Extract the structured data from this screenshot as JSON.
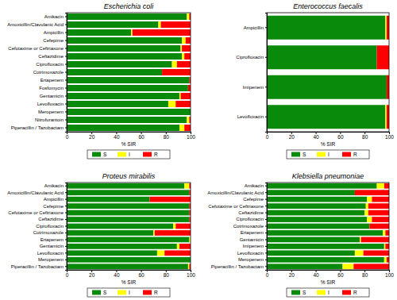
{
  "chart_data": [
    {
      "type": "bar",
      "title": "Escherichia coli",
      "orientation": "horizontal",
      "stacked": true,
      "legend": "bottom",
      "grid": false,
      "xlabel": "% SIR",
      "xlim": [
        0,
        100
      ],
      "xticks": [
        0,
        20,
        40,
        60,
        80,
        100
      ],
      "categories": [
        "Amikacin",
        "Amoxicillin/Clavulanic Acid",
        "Ampicillin",
        "Cefepime",
        "Cefotaxime or Ceftriaxone",
        "Ceftazidime",
        "Ciprofloxacin",
        "Cotrimoxazole",
        "Ertapenem",
        "Fosfomycin",
        "Gentamicin",
        "Levofloxacin",
        "Meropenem",
        "Nitrofurantoin",
        "Piperacillin / Tazobactam"
      ],
      "series": [
        {
          "name": "S",
          "color": "#0a8a0a",
          "values": [
            97,
            74,
            52,
            93,
            92,
            93,
            85,
            77,
            99,
            98,
            91,
            82,
            100,
            97,
            91
          ]
        },
        {
          "name": "I",
          "color": "#ffff00",
          "values": [
            2,
            2,
            1,
            3,
            1,
            2,
            4,
            0,
            0,
            0,
            1,
            6,
            0,
            2,
            4
          ]
        },
        {
          "name": "R",
          "color": "#ff0000",
          "values": [
            1,
            24,
            47,
            4,
            7,
            5,
            11,
            23,
            1,
            2,
            8,
            12,
            0,
            1,
            5
          ]
        }
      ]
    },
    {
      "type": "bar",
      "title": "Enterococcus faecalis",
      "orientation": "horizontal",
      "stacked": true,
      "legend": "bottom",
      "grid": false,
      "xlabel": "% SIR",
      "xlim": [
        0,
        100
      ],
      "xticks": [
        0,
        20,
        40,
        60,
        80,
        100
      ],
      "categories": [
        "Ampicillin",
        "Ciprofloxacin",
        "Imipenem",
        "Levofloxacin"
      ],
      "series": [
        {
          "name": "S",
          "color": "#0a8a0a",
          "values": [
            97,
            90,
            98,
            97
          ]
        },
        {
          "name": "I",
          "color": "#ffff00",
          "values": [
            1,
            0,
            0,
            1
          ]
        },
        {
          "name": "R",
          "color": "#ff0000",
          "values": [
            2,
            10,
            2,
            2
          ]
        }
      ]
    },
    {
      "type": "bar",
      "title": "Proteus mirabilis",
      "orientation": "horizontal",
      "stacked": true,
      "legend": "bottom",
      "grid": false,
      "xlabel": "% SIR",
      "xlim": [
        0,
        100
      ],
      "xticks": [
        0,
        20,
        40,
        60,
        80,
        100
      ],
      "categories": [
        "Amikacin",
        "Amoxicillin/Clavulanic Acid",
        "Ampicillin",
        "Cefepime",
        "Cefotaxime or Ceftriaxone",
        "Ceftazidime",
        "Ciprofloxacin",
        "Cotrimoxazole",
        "Ertapenem",
        "Gentamicin",
        "Levofloxacin",
        "Meropenem",
        "Piperacillin / Tazobactam"
      ],
      "series": [
        {
          "name": "S",
          "color": "#0a8a0a",
          "values": [
            95,
            99,
            67,
            99,
            99,
            99,
            86,
            70,
            99,
            89,
            73,
            100,
            98
          ]
        },
        {
          "name": "I",
          "color": "#ffff00",
          "values": [
            4,
            0,
            0,
            0,
            0,
            0,
            2,
            1,
            1,
            2,
            6,
            0,
            1
          ]
        },
        {
          "name": "R",
          "color": "#ff0000",
          "values": [
            1,
            1,
            33,
            1,
            1,
            1,
            12,
            29,
            0,
            9,
            21,
            0,
            1
          ]
        }
      ]
    },
    {
      "type": "bar",
      "title": "Klebsiella pneumoniae",
      "orientation": "horizontal",
      "stacked": true,
      "legend": "bottom",
      "grid": false,
      "xlabel": "% SIR",
      "xlim": [
        0,
        100
      ],
      "xticks": [
        0,
        20,
        40,
        60,
        80,
        100
      ],
      "categories": [
        "Amikacin",
        "Amoxicillin/Clavulanic Acid",
        "Cefepime",
        "Cefotaxime or Ceftriaxone",
        "Ceftazidime",
        "Ciprofloxacin",
        "Cotrimoxazole",
        "Ertapenem",
        "Gentamicin",
        "Imipenem",
        "Levofloxacin",
        "Meropenem",
        "Piperacillin / Tazobactam"
      ],
      "series": [
        {
          "name": "S",
          "color": "#0a8a0a",
          "values": [
            90,
            72,
            82,
            81,
            80,
            82,
            84,
            95,
            76,
            96,
            72,
            96,
            62
          ]
        },
        {
          "name": "I",
          "color": "#ffff00",
          "values": [
            6,
            0,
            4,
            2,
            3,
            4,
            0,
            2,
            1,
            1,
            7,
            2,
            9
          ]
        },
        {
          "name": "R",
          "color": "#ff0000",
          "values": [
            4,
            28,
            14,
            17,
            17,
            14,
            16,
            3,
            23,
            3,
            21,
            2,
            29
          ]
        }
      ]
    }
  ]
}
